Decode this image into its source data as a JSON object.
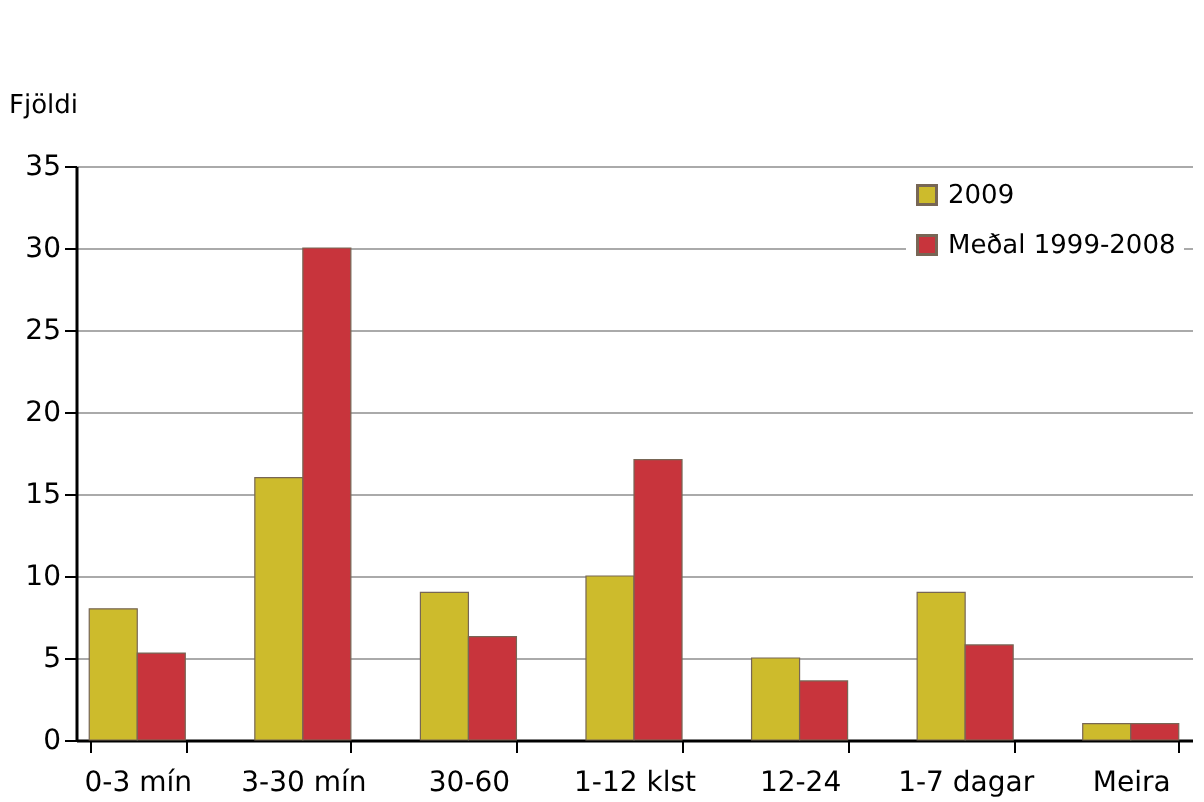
{
  "chart_data": {
    "type": "bar",
    "ylabel": "Fjöldi",
    "categories": [
      "0-3 mín",
      "3-30 mín",
      "30-60",
      "1-12 klst",
      "12-24",
      "1-7 dagar",
      "Meira"
    ],
    "series": [
      {
        "name": "2009",
        "color": "#cdbb2c",
        "values": [
          8,
          16,
          9,
          10,
          5,
          9,
          1
        ]
      },
      {
        "name": "Meðal 1999-2008",
        "color": "#c8343c",
        "values": [
          5.3,
          30,
          6.3,
          17.1,
          3.6,
          5.8,
          1
        ]
      }
    ],
    "ylim": [
      0,
      35
    ],
    "yticks": [
      0,
      5,
      10,
      15,
      20,
      25,
      30,
      35
    ],
    "grid": "y",
    "legend": "top right"
  }
}
